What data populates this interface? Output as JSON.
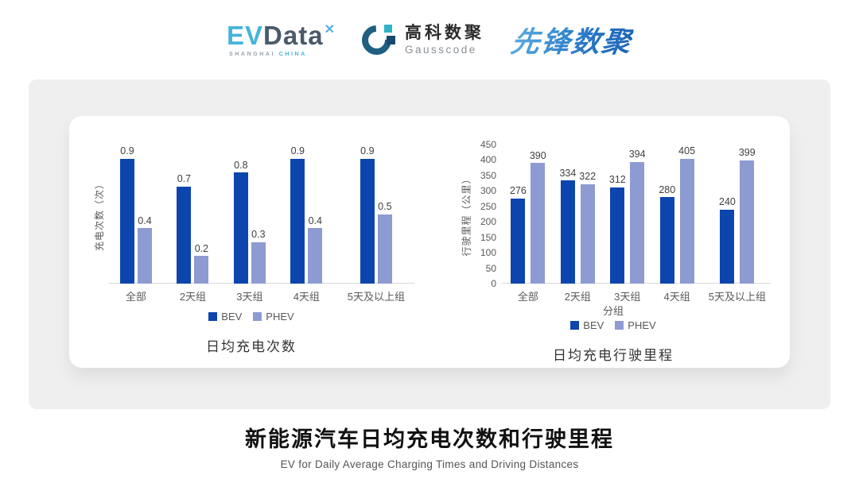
{
  "header": {
    "logos": {
      "evdata": {
        "ev": "EV",
        "data": "Data",
        "sub_gray": "SHANGHAI ",
        "sub_accent": "CHINA"
      },
      "gausscode": {
        "cn": "高科数聚",
        "en": "Gausscode"
      },
      "pioneer": {
        "cn": "先锋数聚"
      }
    }
  },
  "colors": {
    "bev": "#0d45ae",
    "phev": "#8e9ad2",
    "panel_bg": "#efefef",
    "baseline": "#d9d9d9",
    "evdata_cyan": "#45b5d9",
    "evdata_slate": "#4b5a6b",
    "gausscode_teal": "#2fb3c4",
    "gausscode_navy": "#1e5f82",
    "pioneer_blue": "#2a7cc9"
  },
  "chart_data": [
    {
      "type": "bar",
      "title": "日均充电次数",
      "categories": [
        "全部",
        "2天组",
        "3天组",
        "4天组",
        "5天及以上组"
      ],
      "series": [
        {
          "name": "BEV",
          "color": "#0d45ae",
          "values": [
            0.9,
            0.7,
            0.8,
            0.9,
            0.9
          ]
        },
        {
          "name": "PHEV",
          "color": "#8e9ad2",
          "values": [
            0.4,
            0.2,
            0.3,
            0.4,
            0.5
          ]
        }
      ],
      "xlabel": "",
      "ylabel": "充电次数（次）",
      "ylim": [
        0,
        1.0
      ],
      "yticks": null,
      "grid": false,
      "data_labels": true,
      "legend_position": "bottom"
    },
    {
      "type": "bar",
      "title": "日均充电行驶里程",
      "categories": [
        "全部",
        "2天组",
        "3天组",
        "4天组",
        "5天及以上组"
      ],
      "series": [
        {
          "name": "BEV",
          "color": "#0d45ae",
          "values": [
            276,
            334,
            312,
            280,
            240
          ]
        },
        {
          "name": "PHEV",
          "color": "#8e9ad2",
          "values": [
            390,
            322,
            394,
            405,
            399
          ]
        }
      ],
      "xlabel": "分组",
      "ylabel": "行驶里程（公里）",
      "ylim": [
        0,
        450
      ],
      "yticks": [
        0,
        50,
        100,
        150,
        200,
        250,
        300,
        350,
        400,
        450
      ],
      "grid": false,
      "data_labels": true,
      "legend_position": "bottom"
    }
  ],
  "footer": {
    "title": "新能源汽车日均充电次数和行驶里程",
    "subtitle": "EV for Daily Average Charging Times and Driving Distances"
  }
}
